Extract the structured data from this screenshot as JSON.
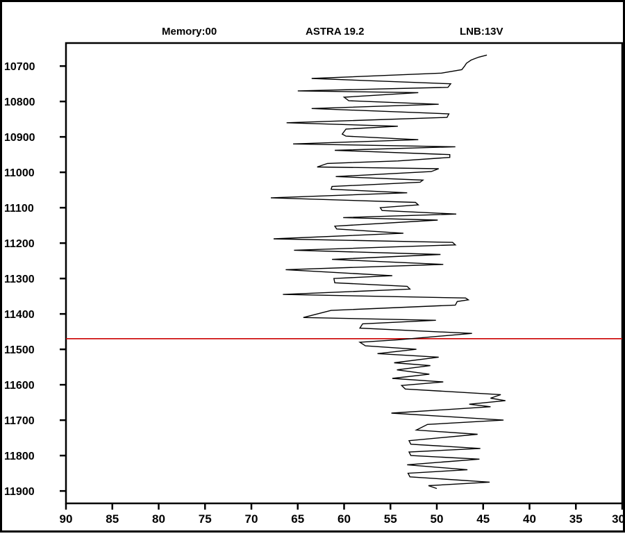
{
  "header": {
    "memory": "Memory:00",
    "satellite": "ASTRA 19.2",
    "lnb": "LNB:13V"
  },
  "colors": {
    "marker_line": "#cc0000",
    "trace": "#000000",
    "frame": "#000000"
  },
  "chart_data": {
    "type": "line",
    "orientation": "vertical-frequency",
    "x_axis": {
      "ticks": [
        "90",
        "85",
        "80",
        "75",
        "70",
        "65",
        "60",
        "55",
        "50",
        "45",
        "40",
        "35",
        "30"
      ],
      "range": [
        90,
        30
      ],
      "reversed": true
    },
    "y_axis": {
      "ticks": [
        "10700",
        "10800",
        "10900",
        "11000",
        "11100",
        "11200",
        "11300",
        "11400",
        "11500",
        "11600",
        "11700",
        "11800",
        "11900"
      ],
      "range": [
        10635,
        11935
      ]
    },
    "marker": {
      "y": 11470
    },
    "grid": false,
    "series": [
      {
        "points": [
          [
            44.6,
            10669
          ],
          [
            45.5,
            10675
          ],
          [
            46.3,
            10683
          ],
          [
            46.8,
            10692
          ],
          [
            47.0,
            10700
          ],
          [
            47.3,
            10710
          ],
          [
            49.5,
            10720
          ],
          [
            63.5,
            10735
          ],
          [
            48.5,
            10750
          ],
          [
            48.8,
            10760
          ],
          [
            65.0,
            10770
          ],
          [
            52.0,
            10775
          ],
          [
            60.0,
            10788
          ],
          [
            59.5,
            10798
          ],
          [
            49.8,
            10808
          ],
          [
            63.5,
            10820
          ],
          [
            48.7,
            10835
          ],
          [
            48.9,
            10845
          ],
          [
            66.2,
            10860
          ],
          [
            54.2,
            10870
          ],
          [
            59.8,
            10878
          ],
          [
            60.2,
            10892
          ],
          [
            59.8,
            10898
          ],
          [
            52.0,
            10908
          ],
          [
            65.5,
            10920
          ],
          [
            48.0,
            10928
          ],
          [
            61.0,
            10938
          ],
          [
            48.6,
            10950
          ],
          [
            48.6,
            10958
          ],
          [
            54.2,
            10968
          ],
          [
            61.8,
            10975
          ],
          [
            62.9,
            10985
          ],
          [
            49.8,
            10990
          ],
          [
            50.6,
            10998
          ],
          [
            60.9,
            11012
          ],
          [
            51.5,
            11022
          ],
          [
            51.8,
            11028
          ],
          [
            61.3,
            11040
          ],
          [
            61.4,
            11048
          ],
          [
            53.2,
            11058
          ],
          [
            67.9,
            11072
          ],
          [
            52.3,
            11085
          ],
          [
            52.0,
            11092
          ],
          [
            56.1,
            11100
          ],
          [
            55.9,
            11108
          ],
          [
            47.9,
            11118
          ],
          [
            60.1,
            11128
          ],
          [
            49.9,
            11135
          ],
          [
            61.0,
            11152
          ],
          [
            60.8,
            11160
          ],
          [
            53.6,
            11172
          ],
          [
            67.6,
            11188
          ],
          [
            48.3,
            11198
          ],
          [
            48.0,
            11205
          ],
          [
            65.4,
            11220
          ],
          [
            49.6,
            11232
          ],
          [
            61.3,
            11246
          ],
          [
            49.3,
            11260
          ],
          [
            66.3,
            11275
          ],
          [
            54.8,
            11292
          ],
          [
            61.1,
            11300
          ],
          [
            61.0,
            11312
          ],
          [
            53.2,
            11322
          ],
          [
            52.9,
            11330
          ],
          [
            66.6,
            11345
          ],
          [
            46.9,
            11355
          ],
          [
            46.6,
            11360
          ],
          [
            47.8,
            11365
          ],
          [
            48.0,
            11375
          ],
          [
            61.4,
            11390
          ],
          [
            64.4,
            11410
          ],
          [
            50.1,
            11418
          ],
          [
            58.0,
            11428
          ],
          [
            58.3,
            11440
          ],
          [
            46.2,
            11455
          ],
          [
            54.2,
            11473
          ],
          [
            58.3,
            11480
          ],
          [
            57.7,
            11490
          ],
          [
            52.2,
            11500
          ],
          [
            56.4,
            11512
          ],
          [
            49.8,
            11522
          ],
          [
            54.6,
            11538
          ],
          [
            50.7,
            11546
          ],
          [
            54.3,
            11558
          ],
          [
            50.8,
            11570
          ],
          [
            54.8,
            11582
          ],
          [
            49.3,
            11592
          ],
          [
            53.8,
            11602
          ],
          [
            53.4,
            11612
          ],
          [
            43.1,
            11628
          ],
          [
            44.2,
            11638
          ],
          [
            42.6,
            11645
          ],
          [
            46.5,
            11655
          ],
          [
            44.2,
            11662
          ],
          [
            54.9,
            11680
          ],
          [
            42.8,
            11700
          ],
          [
            51.0,
            11712
          ],
          [
            52.2,
            11728
          ],
          [
            45.6,
            11740
          ],
          [
            53.0,
            11758
          ],
          [
            52.8,
            11768
          ],
          [
            45.3,
            11780
          ],
          [
            53.0,
            11790
          ],
          [
            52.8,
            11800
          ],
          [
            45.4,
            11810
          ],
          [
            53.2,
            11826
          ],
          [
            46.7,
            11840
          ],
          [
            53.1,
            11850
          ],
          [
            52.9,
            11860
          ],
          [
            44.3,
            11875
          ],
          [
            50.9,
            11885
          ],
          [
            50.0,
            11893
          ]
        ]
      }
    ]
  }
}
